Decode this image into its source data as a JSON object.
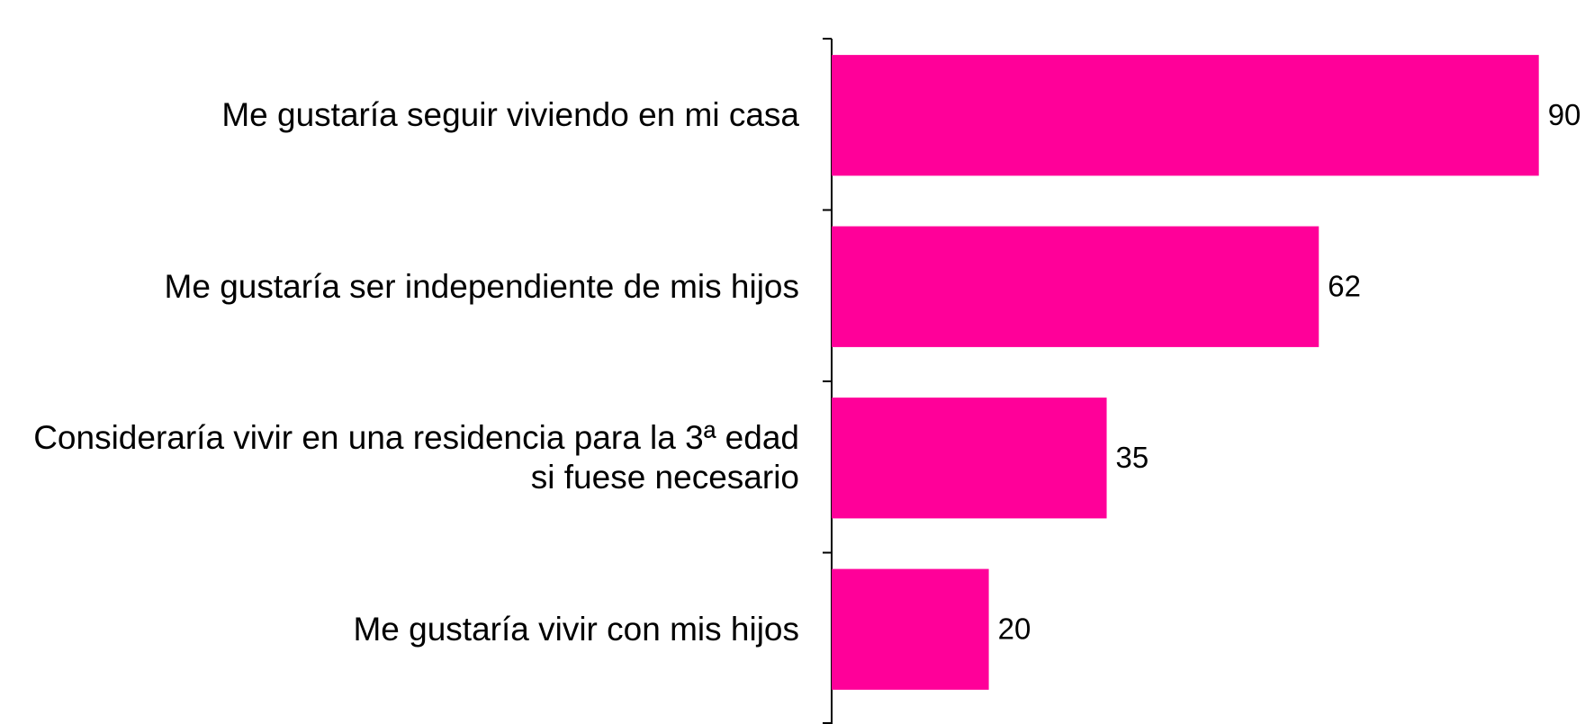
{
  "chart_data": {
    "type": "bar",
    "orientation": "horizontal",
    "categories": [
      "Me gustaría seguir viviendo en mi casa",
      "Me gustaría ser independiente de mis hijos",
      "Consideraría vivir en una residencia para la 3ª edad si fuese necesario",
      "Me gustaría vivir con mis hijos"
    ],
    "values": [
      90,
      62,
      35,
      20
    ],
    "color": "#ff0099",
    "xlim": [
      0,
      100
    ]
  }
}
